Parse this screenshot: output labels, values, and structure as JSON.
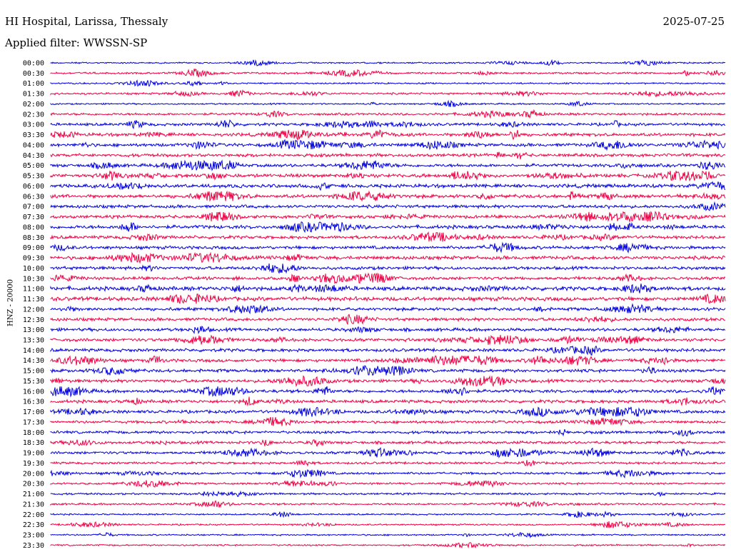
{
  "header": {
    "station": "HI Hospital, Larissa, Thessaly",
    "date": "2025-07-25",
    "filter": "Applied filter: WWSSN-SP"
  },
  "chart_data": {
    "type": "line",
    "title": "HI Hospital, Larissa, Thessaly",
    "subtitle": "Applied filter: WWSSN-SP",
    "date": "2025-07-25",
    "ylabel": "HNZ - 20000",
    "xlabel": "",
    "grid": false,
    "legend": "none",
    "colors": [
      "#0000dd",
      "#ee0044"
    ],
    "rows": [
      "00:00",
      "00:30",
      "01:00",
      "01:30",
      "02:00",
      "02:30",
      "03:00",
      "03:30",
      "04:00",
      "04:30",
      "05:00",
      "05:30",
      "06:00",
      "06:30",
      "07:00",
      "07:30",
      "08:00",
      "08:30",
      "09:00",
      "09:30",
      "10:00",
      "10:30",
      "11:00",
      "11:30",
      "12:00",
      "12:30",
      "13:00",
      "13:30",
      "14:00",
      "14:30",
      "15:00",
      "15:30",
      "16:00",
      "16:30",
      "17:00",
      "17:30",
      "18:00",
      "18:30",
      "19:00",
      "19:30",
      "20:00",
      "20:30",
      "21:00",
      "21:30",
      "22:00",
      "22:30",
      "23:00",
      "23:30"
    ],
    "activity": [
      2,
      3,
      2,
      3,
      2,
      4,
      5,
      6,
      6,
      6,
      6,
      7,
      7,
      7,
      6,
      6,
      7,
      6,
      6,
      7,
      6,
      6,
      8,
      8,
      6,
      6,
      6,
      6,
      6,
      6,
      6,
      6,
      6,
      6,
      6,
      5,
      5,
      5,
      5,
      4,
      4,
      3,
      3,
      3,
      2,
      2,
      2,
      2
    ]
  }
}
